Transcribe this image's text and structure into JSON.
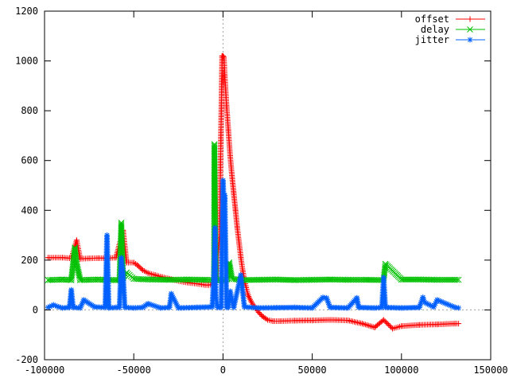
{
  "chart_data": {
    "type": "line",
    "title": "",
    "xlabel": "",
    "ylabel": "",
    "xlim": [
      -100000,
      150000
    ],
    "ylim": [
      -200,
      1200
    ],
    "x_ticks": [
      -100000,
      -50000,
      0,
      50000,
      100000,
      150000
    ],
    "y_ticks": [
      -200,
      0,
      200,
      400,
      600,
      800,
      1000,
      1200
    ],
    "x_tick_labels": [
      "-100000",
      "-50000",
      "0",
      "50000",
      "100000",
      "150000"
    ],
    "y_tick_labels": [
      "-200",
      "0",
      "200",
      "400",
      "600",
      "800",
      "1000",
      "1200"
    ],
    "zero_axes": true,
    "legend_position": "top-right",
    "series": [
      {
        "name": "offset",
        "color": "#ff0000",
        "marker": "plus",
        "x": [
          -98000,
          -90000,
          -85000,
          -82000,
          -80000,
          -75000,
          -70000,
          -65000,
          -60000,
          -56000,
          -54000,
          -50000,
          -48000,
          -45000,
          -42000,
          -38000,
          -34000,
          -30000,
          -26000,
          -22000,
          -18000,
          -14000,
          -10000,
          -8000,
          -6000,
          -4000,
          -2000,
          -500,
          0,
          500,
          1000,
          2000,
          3000,
          4000,
          5000,
          6000,
          7000,
          8000,
          9000,
          10000,
          11000,
          12000,
          13000,
          14000,
          16000,
          18000,
          20000,
          22000,
          25000,
          28000,
          32000,
          40000,
          50000,
          60000,
          70000,
          78000,
          85000,
          90000,
          95000,
          100000,
          110000,
          120000,
          130000,
          132000
        ],
        "y": [
          210,
          210,
          207,
          280,
          205,
          207,
          208,
          208,
          210,
          320,
          190,
          190,
          180,
          160,
          148,
          140,
          132,
          125,
          118,
          112,
          108,
          105,
          100,
          100,
          102,
          120,
          290,
          1020,
          1020,
          1015,
          940,
          820,
          720,
          620,
          540,
          470,
          400,
          330,
          270,
          210,
          160,
          120,
          90,
          60,
          30,
          10,
          -10,
          -25,
          -40,
          -45,
          -45,
          -43,
          -42,
          -40,
          -42,
          -55,
          -70,
          -40,
          -75,
          -65,
          -60,
          -58,
          -55,
          -55
        ]
      },
      {
        "name": "delay",
        "color": "#00c000",
        "marker": "x",
        "x": [
          -98000,
          -90000,
          -85000,
          -83000,
          -82000,
          -80000,
          -75000,
          -70000,
          -65000,
          -60000,
          -58000,
          -57000,
          -56000,
          -54000,
          -50000,
          -45000,
          -40000,
          -30000,
          -20000,
          -10000,
          -5000,
          -4800,
          -4500,
          -4000,
          -2000,
          0,
          2000,
          3500,
          5000,
          10000,
          20000,
          30000,
          40000,
          50000,
          60000,
          70000,
          80000,
          90000,
          91000,
          100000,
          110000,
          120000,
          130000,
          132000
        ],
        "y": [
          120,
          122,
          120,
          250,
          185,
          120,
          121,
          122,
          120,
          120,
          120,
          350,
          130,
          150,
          125,
          123,
          122,
          121,
          122,
          121,
          120,
          665,
          380,
          120,
          120,
          120,
          122,
          190,
          125,
          120,
          121,
          122,
          120,
          121,
          122,
          121,
          121,
          120,
          185,
          122,
          122,
          121,
          121,
          121
        ]
      },
      {
        "name": "jitter",
        "color": "#0060ff",
        "marker": "star",
        "x": [
          -98000,
          -95000,
          -92000,
          -90000,
          -86000,
          -85000,
          -84000,
          -80000,
          -78000,
          -72000,
          -66000,
          -65000,
          -64000,
          -60000,
          -58000,
          -57000,
          -56000,
          -55000,
          -50000,
          -45000,
          -42000,
          -35000,
          -30000,
          -29000,
          -25000,
          -15000,
          -6000,
          -5000,
          -4500,
          -4000,
          -3000,
          -2000,
          -1000,
          0,
          500,
          1000,
          2000,
          3000,
          4000,
          6000,
          10000,
          12000,
          20000,
          30000,
          40000,
          50000,
          56000,
          58000,
          60000,
          70000,
          75000,
          76000,
          85000,
          89000,
          90000,
          91000,
          100000,
          110000,
          112000,
          113000,
          118000,
          120000,
          130000,
          132000
        ],
        "y": [
          10,
          20,
          12,
          8,
          10,
          80,
          10,
          8,
          40,
          12,
          10,
          300,
          8,
          10,
          10,
          210,
          150,
          10,
          8,
          10,
          25,
          8,
          10,
          65,
          8,
          10,
          12,
          170,
          330,
          50,
          10,
          10,
          10,
          520,
          430,
          460,
          10,
          10,
          75,
          10,
          140,
          12,
          8,
          9,
          10,
          8,
          50,
          48,
          10,
          8,
          48,
          10,
          8,
          10,
          130,
          10,
          8,
          10,
          50,
          30,
          12,
          40,
          10,
          8
        ]
      }
    ]
  }
}
